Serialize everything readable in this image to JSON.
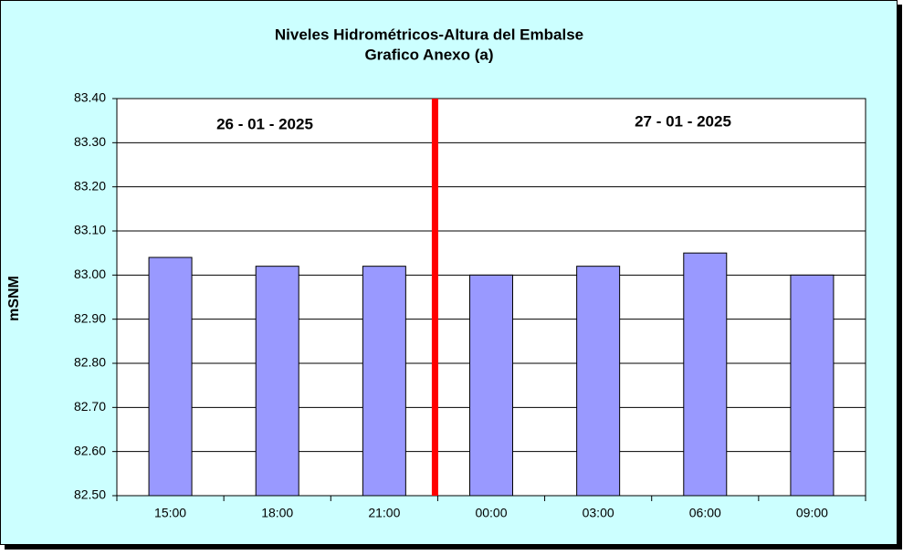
{
  "chart_data": {
    "type": "bar",
    "title": "Niveles Hidrométricos-Altura del Embalse",
    "subtitle": "Grafico Anexo (a)",
    "y_label": "mSNM",
    "annotations": [
      "26 - 01 - 2025",
      "27 - 01 - 2025"
    ],
    "categories": [
      "15:00",
      "18:00",
      "21:00",
      "00:00",
      "03:00",
      "06:00",
      "09:00"
    ],
    "values": [
      83.04,
      83.02,
      83.02,
      83.0,
      83.02,
      83.05,
      83.0
    ],
    "color": "#9999ff",
    "ylim": [
      82.5,
      83.4
    ],
    "yticks": [
      {
        "value": 82.5,
        "label": "82.50"
      },
      {
        "value": 82.6,
        "label": "82.60"
      },
      {
        "value": 82.7,
        "label": "82.70"
      },
      {
        "value": 82.8,
        "label": "82.80"
      },
      {
        "value": 82.9,
        "label": "82.90"
      },
      {
        "value": 83.0,
        "label": "83.00"
      },
      {
        "value": 83.1,
        "label": "83.10"
      },
      {
        "value": 83.2,
        "label": "83.20"
      },
      {
        "value": 83.3,
        "label": "83.30"
      },
      {
        "value": 83.4,
        "label": "83.40"
      }
    ],
    "grid": true
  }
}
